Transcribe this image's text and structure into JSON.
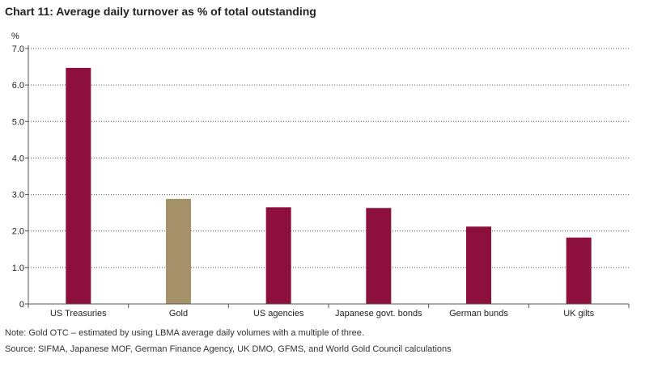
{
  "chart_data": {
    "type": "bar",
    "title": "Chart 11: Average daily turnover as % of total outstanding",
    "ylabel": "%",
    "xlabel": "",
    "categories": [
      "US Treasuries",
      "Gold",
      "US agencies",
      "Japanese govt. bonds",
      "German bunds",
      "UK gilts"
    ],
    "values": [
      6.47,
      2.88,
      2.65,
      2.63,
      2.12,
      1.82
    ],
    "bar_colors": [
      "#8c0f3c",
      "#a5926a",
      "#8c0f3c",
      "#8c0f3c",
      "#8c0f3c",
      "#8c0f3c"
    ],
    "ylim": [
      0,
      7
    ],
    "yticks": [
      "0",
      "1.0",
      "2.0",
      "3.0",
      "4.0",
      "5.0",
      "6.0",
      "7.0"
    ],
    "grid": "dotted horizontal"
  },
  "note": "Note: Gold OTC – estimated by using LBMA average daily volumes with a multiple of three.",
  "source": "Source: SIFMA, Japanese MOF, German Finance Agency, UK DMO, GFMS, and World Gold Council calculations"
}
